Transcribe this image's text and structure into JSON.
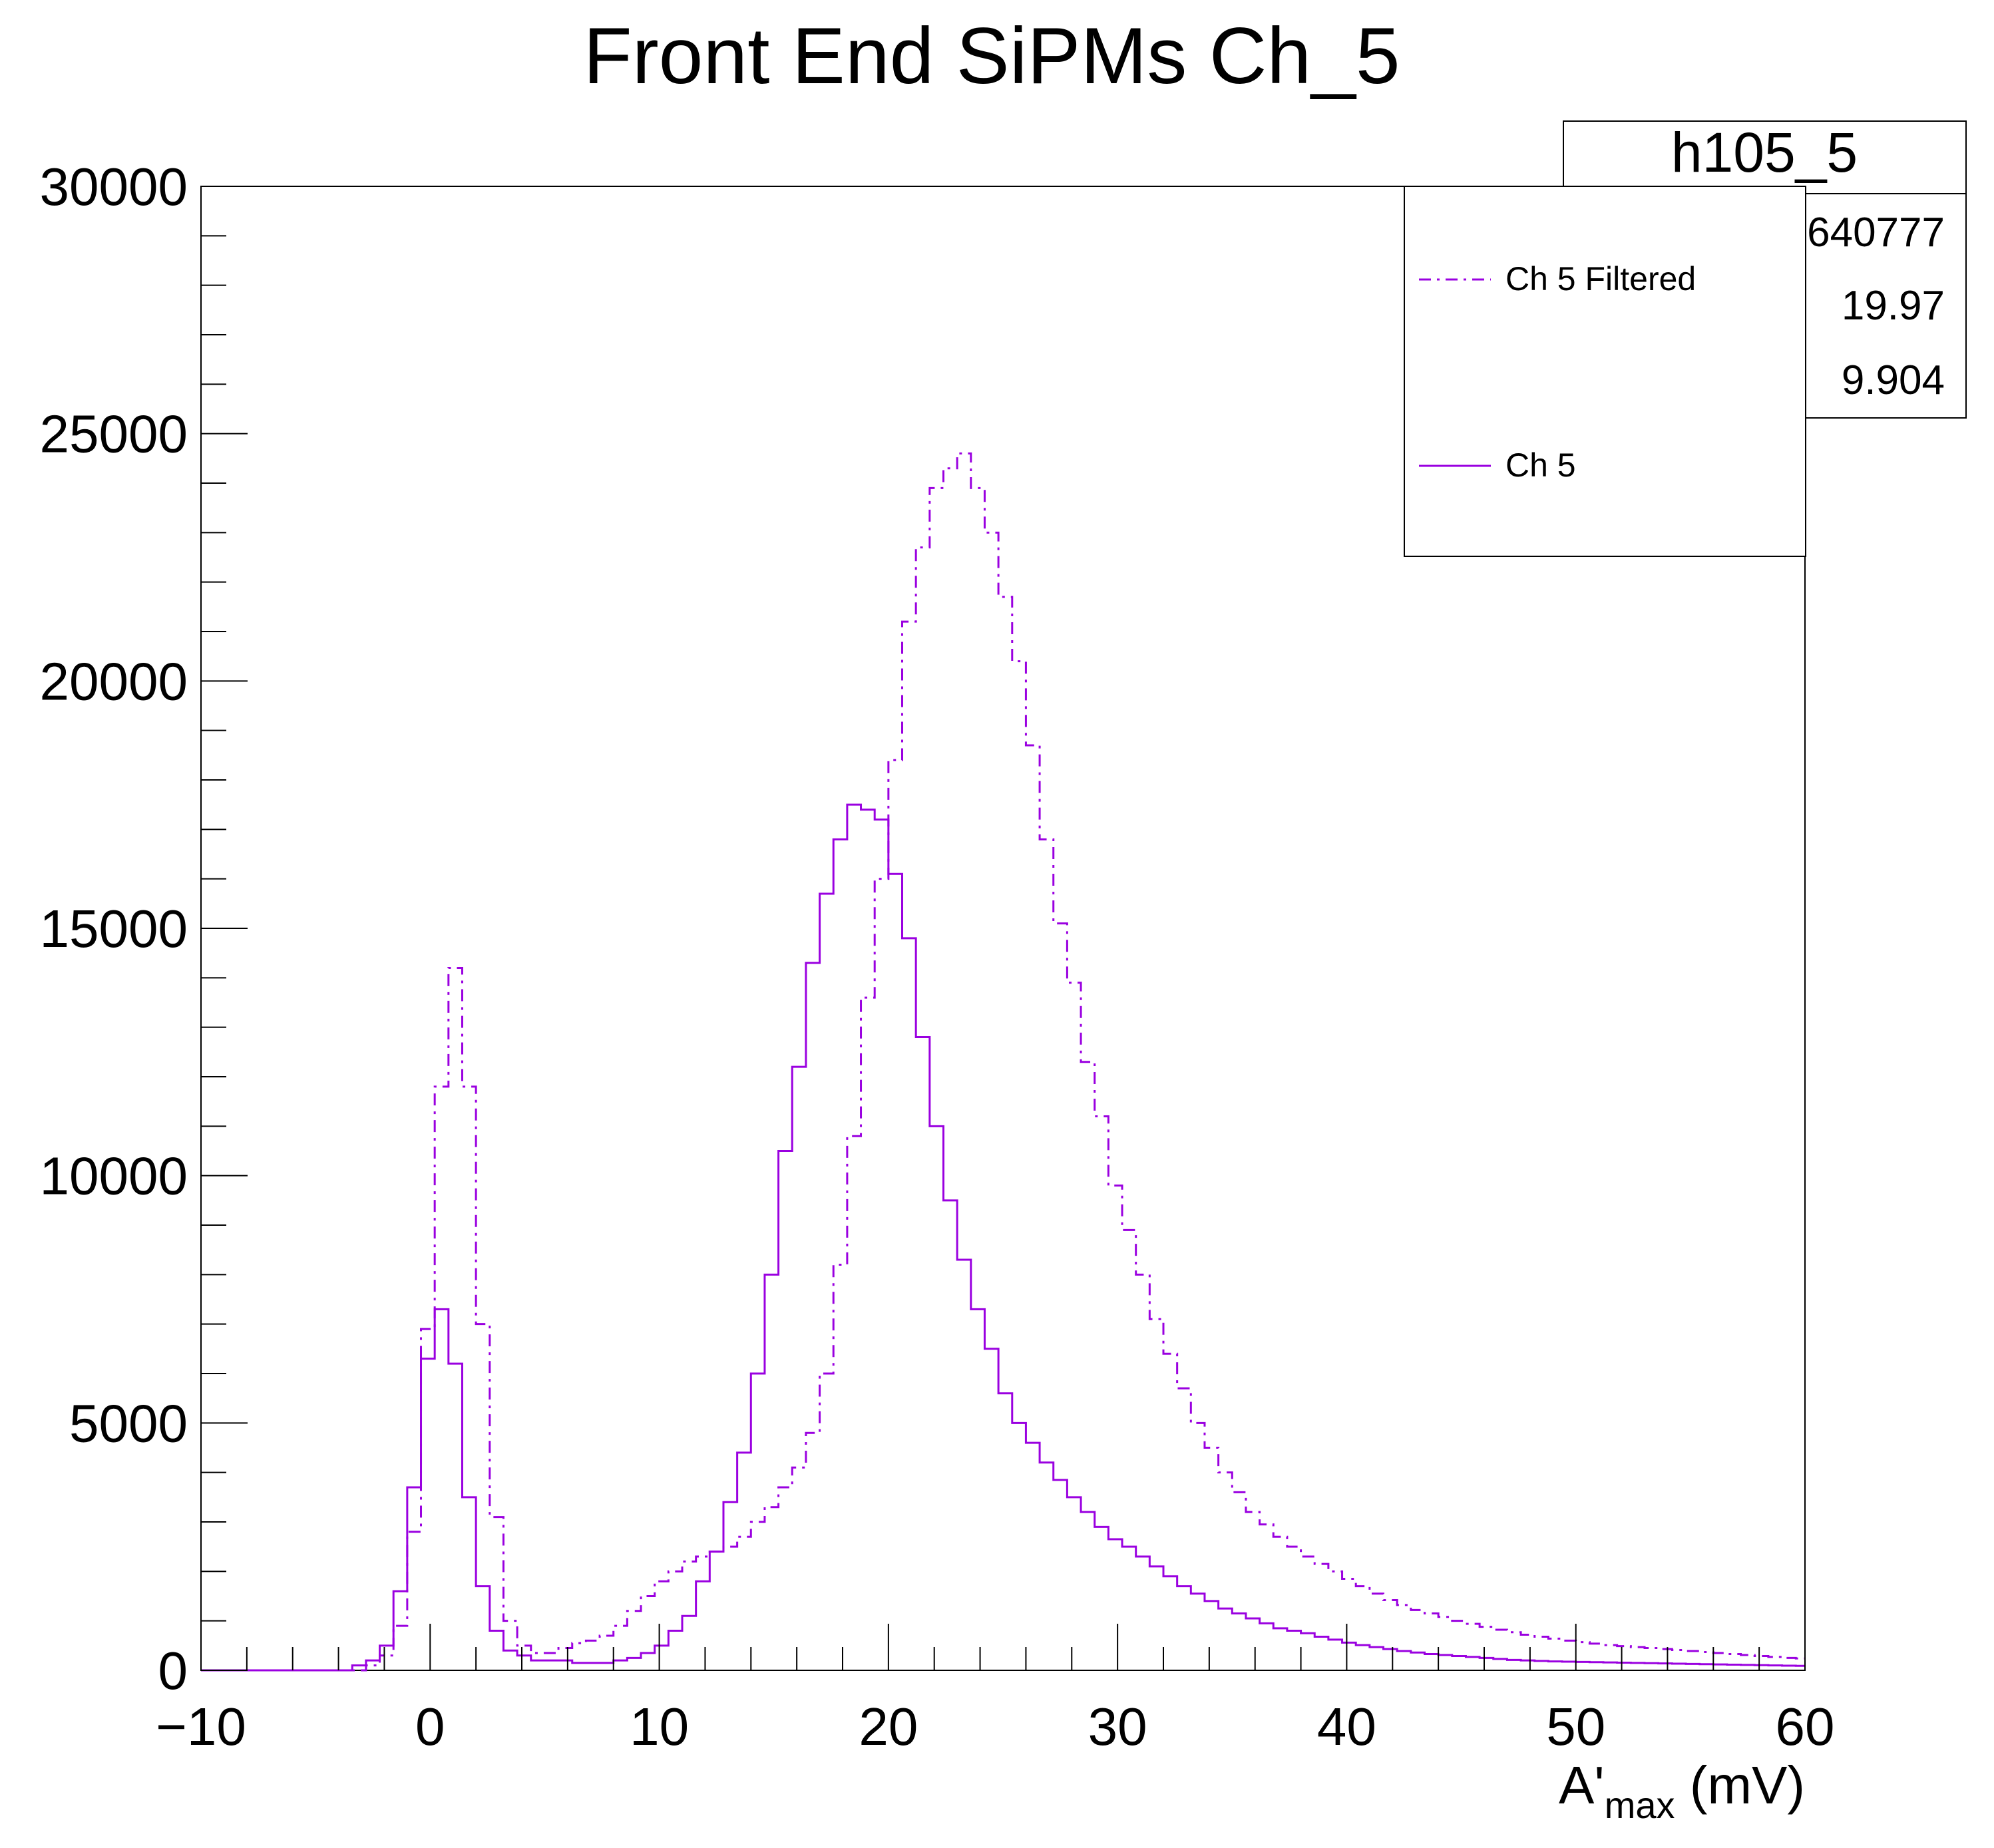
{
  "chart_data": {
    "type": "histogram",
    "title": "Front End SiPMs Ch_5",
    "xlabel": {
      "main": "A'",
      "sub": "max",
      "unit": " (mV)"
    },
    "ylabel": "",
    "xlim": [
      -10,
      60
    ],
    "ylim": [
      0,
      30000
    ],
    "x_ticks": [
      -10,
      0,
      10,
      20,
      30,
      40,
      50,
      60
    ],
    "x_tick_labels": [
      "−10",
      "0",
      "10",
      "20",
      "30",
      "40",
      "50",
      "60"
    ],
    "y_ticks": [
      0,
      5000,
      10000,
      15000,
      20000,
      25000,
      30000
    ],
    "y_tick_labels": [
      "0",
      "5000",
      "10000",
      "15000",
      "20000",
      "25000",
      "30000"
    ],
    "bin_width": 0.6,
    "bins_start": -10,
    "series": [
      {
        "name": "Ch 5",
        "style": "solid",
        "color": "#9A00E0",
        "values": [
          0,
          0,
          0,
          0,
          0,
          0,
          0,
          0,
          0,
          0,
          0,
          100,
          200,
          500,
          1600,
          3700,
          6300,
          7300,
          6200,
          3500,
          1700,
          800,
          400,
          300,
          200,
          200,
          200,
          150,
          150,
          150,
          200,
          250,
          350,
          500,
          800,
          1100,
          1800,
          2400,
          3400,
          4400,
          6000,
          8000,
          10500,
          12200,
          14300,
          15700,
          16800,
          17500,
          17400,
          17200,
          16100,
          14800,
          12800,
          11000,
          9500,
          8300,
          7300,
          6500,
          5600,
          5000,
          4600,
          4200,
          3850,
          3500,
          3200,
          2900,
          2650,
          2500,
          2300,
          2100,
          1900,
          1700,
          1550,
          1400,
          1250,
          1150,
          1050,
          950,
          850,
          800,
          750,
          680,
          620,
          560,
          510,
          470,
          430,
          390,
          360,
          330,
          310,
          290,
          270,
          250,
          230,
          210,
          200,
          190,
          180,
          175,
          170,
          165,
          160,
          155,
          150,
          145,
          140,
          135,
          130,
          125,
          120,
          115,
          110,
          105,
          100,
          95,
          90,
          85,
          80,
          75,
          70
        ]
      },
      {
        "name": "Ch 5 Filtered",
        "style": "dash-dot",
        "color": "#9A00E0",
        "values": [
          0,
          0,
          0,
          0,
          0,
          0,
          0,
          0,
          0,
          0,
          0,
          0,
          100,
          300,
          900,
          2800,
          6900,
          11800,
          14200,
          11800,
          7000,
          3100,
          1000,
          500,
          350,
          350,
          450,
          550,
          600,
          700,
          900,
          1200,
          1500,
          1800,
          2000,
          2200,
          2300,
          2400,
          2500,
          2700,
          3000,
          3300,
          3700,
          4100,
          4800,
          6000,
          8200,
          10800,
          13600,
          16000,
          18400,
          21200,
          22700,
          23900,
          24300,
          24600,
          23900,
          23000,
          21700,
          20400,
          18700,
          16800,
          15100,
          13900,
          12300,
          11200,
          9800,
          8900,
          8000,
          7100,
          6400,
          5700,
          5000,
          4500,
          4000,
          3600,
          3200,
          2950,
          2700,
          2500,
          2300,
          2150,
          2000,
          1850,
          1700,
          1550,
          1420,
          1320,
          1220,
          1150,
          1080,
          1000,
          940,
          880,
          820,
          770,
          720,
          680,
          640,
          600,
          570,
          540,
          510,
          490,
          470,
          450,
          430,
          410,
          390,
          370,
          350,
          330,
          310,
          290,
          270,
          250,
          240,
          230
        ]
      }
    ],
    "legend": {
      "placement": "top-right",
      "entries": [
        {
          "label": "Ch 5 Filtered",
          "style": "dash-dot"
        },
        {
          "label": "Ch 5",
          "style": "solid"
        }
      ]
    },
    "stats_box": {
      "title": "h105_5",
      "entries_value": "640777",
      "mean_value": "19.97",
      "std_value": "9.904"
    },
    "grid": false
  }
}
